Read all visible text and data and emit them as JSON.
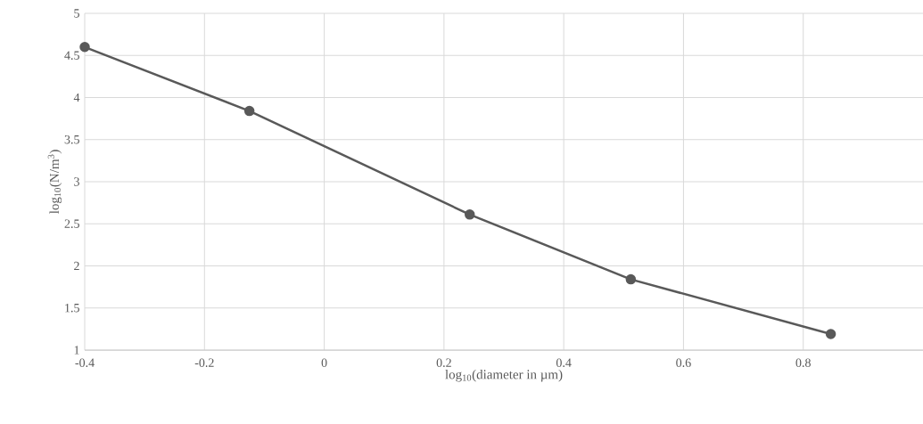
{
  "chart_data": {
    "type": "line",
    "xlabel": "log$_{10}$(diameter in µm)",
    "ylabel": "log$_{10}$(N/m$^{3}$)",
    "x": [
      -0.4,
      -0.125,
      0.243,
      0.512,
      0.846
    ],
    "values": [
      4.6,
      3.84,
      2.61,
      1.84,
      1.19
    ],
    "color": "#595959",
    "xlim": [
      -0.4,
      1.0
    ],
    "ylim": [
      1,
      5
    ],
    "xticks": [
      -0.4,
      -0.2,
      0,
      0.2,
      0.4,
      0.6,
      0.8
    ],
    "yticks": [
      1,
      1.5,
      2,
      2.5,
      3,
      3.5,
      4,
      4.5,
      5
    ],
    "grid": true,
    "marker": "circle",
    "line_style": "solid"
  }
}
